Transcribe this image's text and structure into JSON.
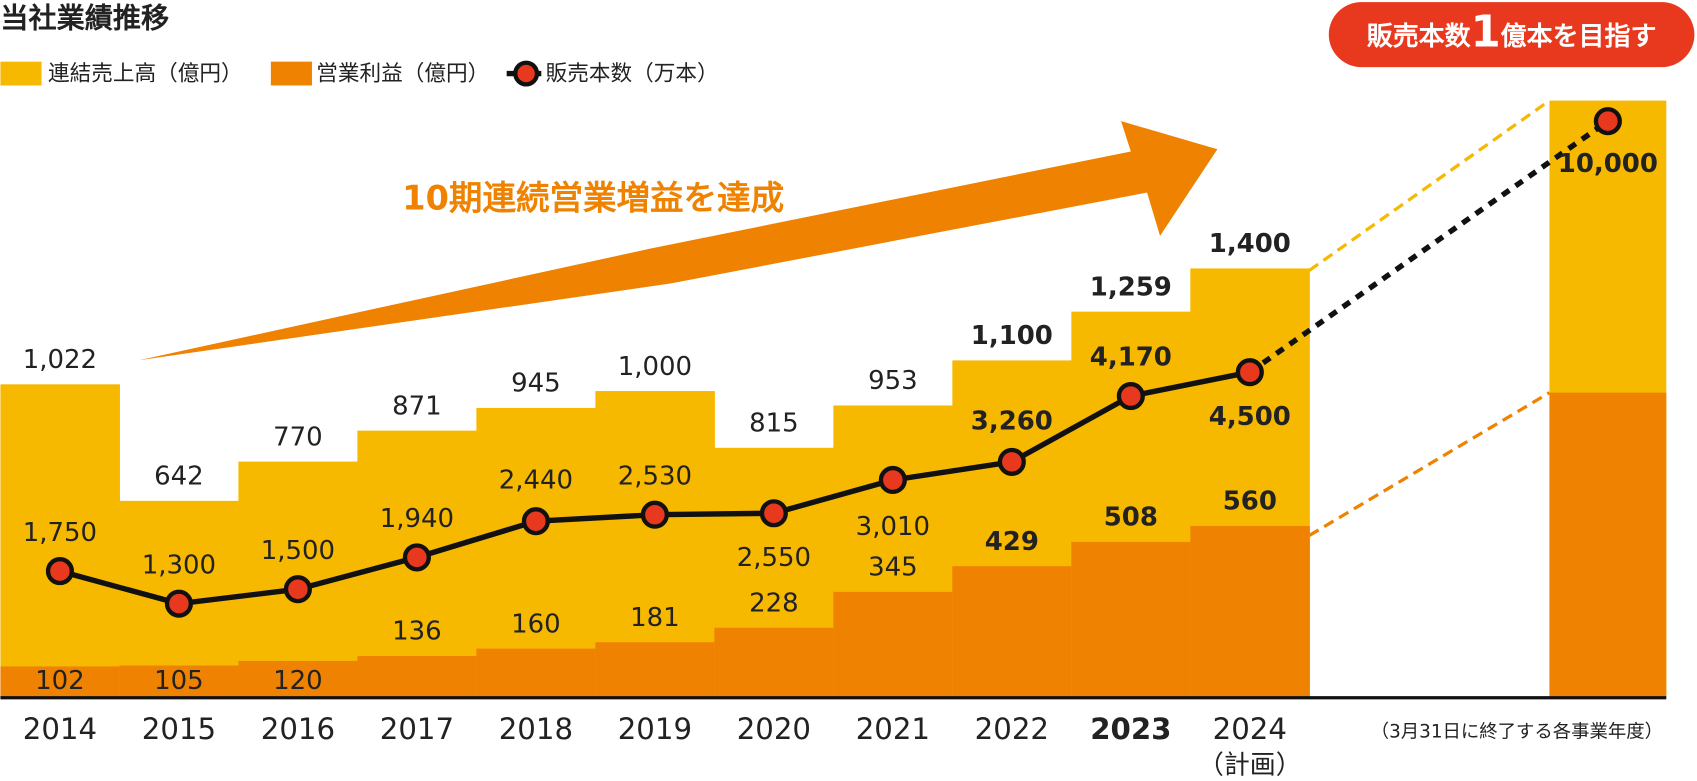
{
  "chart_data": {
    "type": "bar-line",
    "title": "当社業績推移",
    "annotation": "10期連続営業増益を達成",
    "footnote": "（3月31日に終了する各事業年度）",
    "categories": [
      "2014",
      "2015",
      "2016",
      "2017",
      "2018",
      "2019",
      "2020",
      "2021",
      "2022",
      "2023",
      "2024"
    ],
    "plan_label": "（計画）",
    "series": [
      {
        "name": "連結売上高（億円）",
        "color": "#f7b800",
        "values": [
          1022,
          642,
          770,
          871,
          945,
          1000,
          815,
          953,
          1100,
          1259,
          1400
        ]
      },
      {
        "name": "営業利益（億円）",
        "color": "#ef8200",
        "values": [
          102,
          105,
          120,
          136,
          160,
          181,
          228,
          345,
          429,
          508,
          560
        ]
      },
      {
        "name": "販売本数（万本）",
        "color": "#e8391e",
        "line_color": "#111111",
        "axis": "y2",
        "values": [
          1750,
          1300,
          1500,
          1940,
          2440,
          2530,
          2550,
          3010,
          3260,
          4170,
          4500
        ]
      }
    ],
    "target": {
      "value": 10000,
      "value_label": "10,000",
      "badge": [
        "販売本数",
        "1",
        "億本を目指す"
      ],
      "color": "#e8391e"
    },
    "value_labels": [
      [
        "1,022",
        "642",
        "770",
        "871",
        "945",
        "1,000",
        "815",
        "953",
        "1,100",
        "1,259",
        "1,400"
      ],
      [
        "102",
        "105",
        "120",
        "136",
        "160",
        "181",
        "228",
        "345",
        "429",
        "508",
        "560"
      ],
      [
        "1,750",
        "1,300",
        "1,500",
        "1,940",
        "2,440",
        "2,530",
        "2,550",
        "3,010",
        "3,260",
        "4,170",
        "4,500"
      ]
    ],
    "ylim": [
      0,
      2300
    ],
    "y2lim": [
      0,
      9750
    ]
  }
}
